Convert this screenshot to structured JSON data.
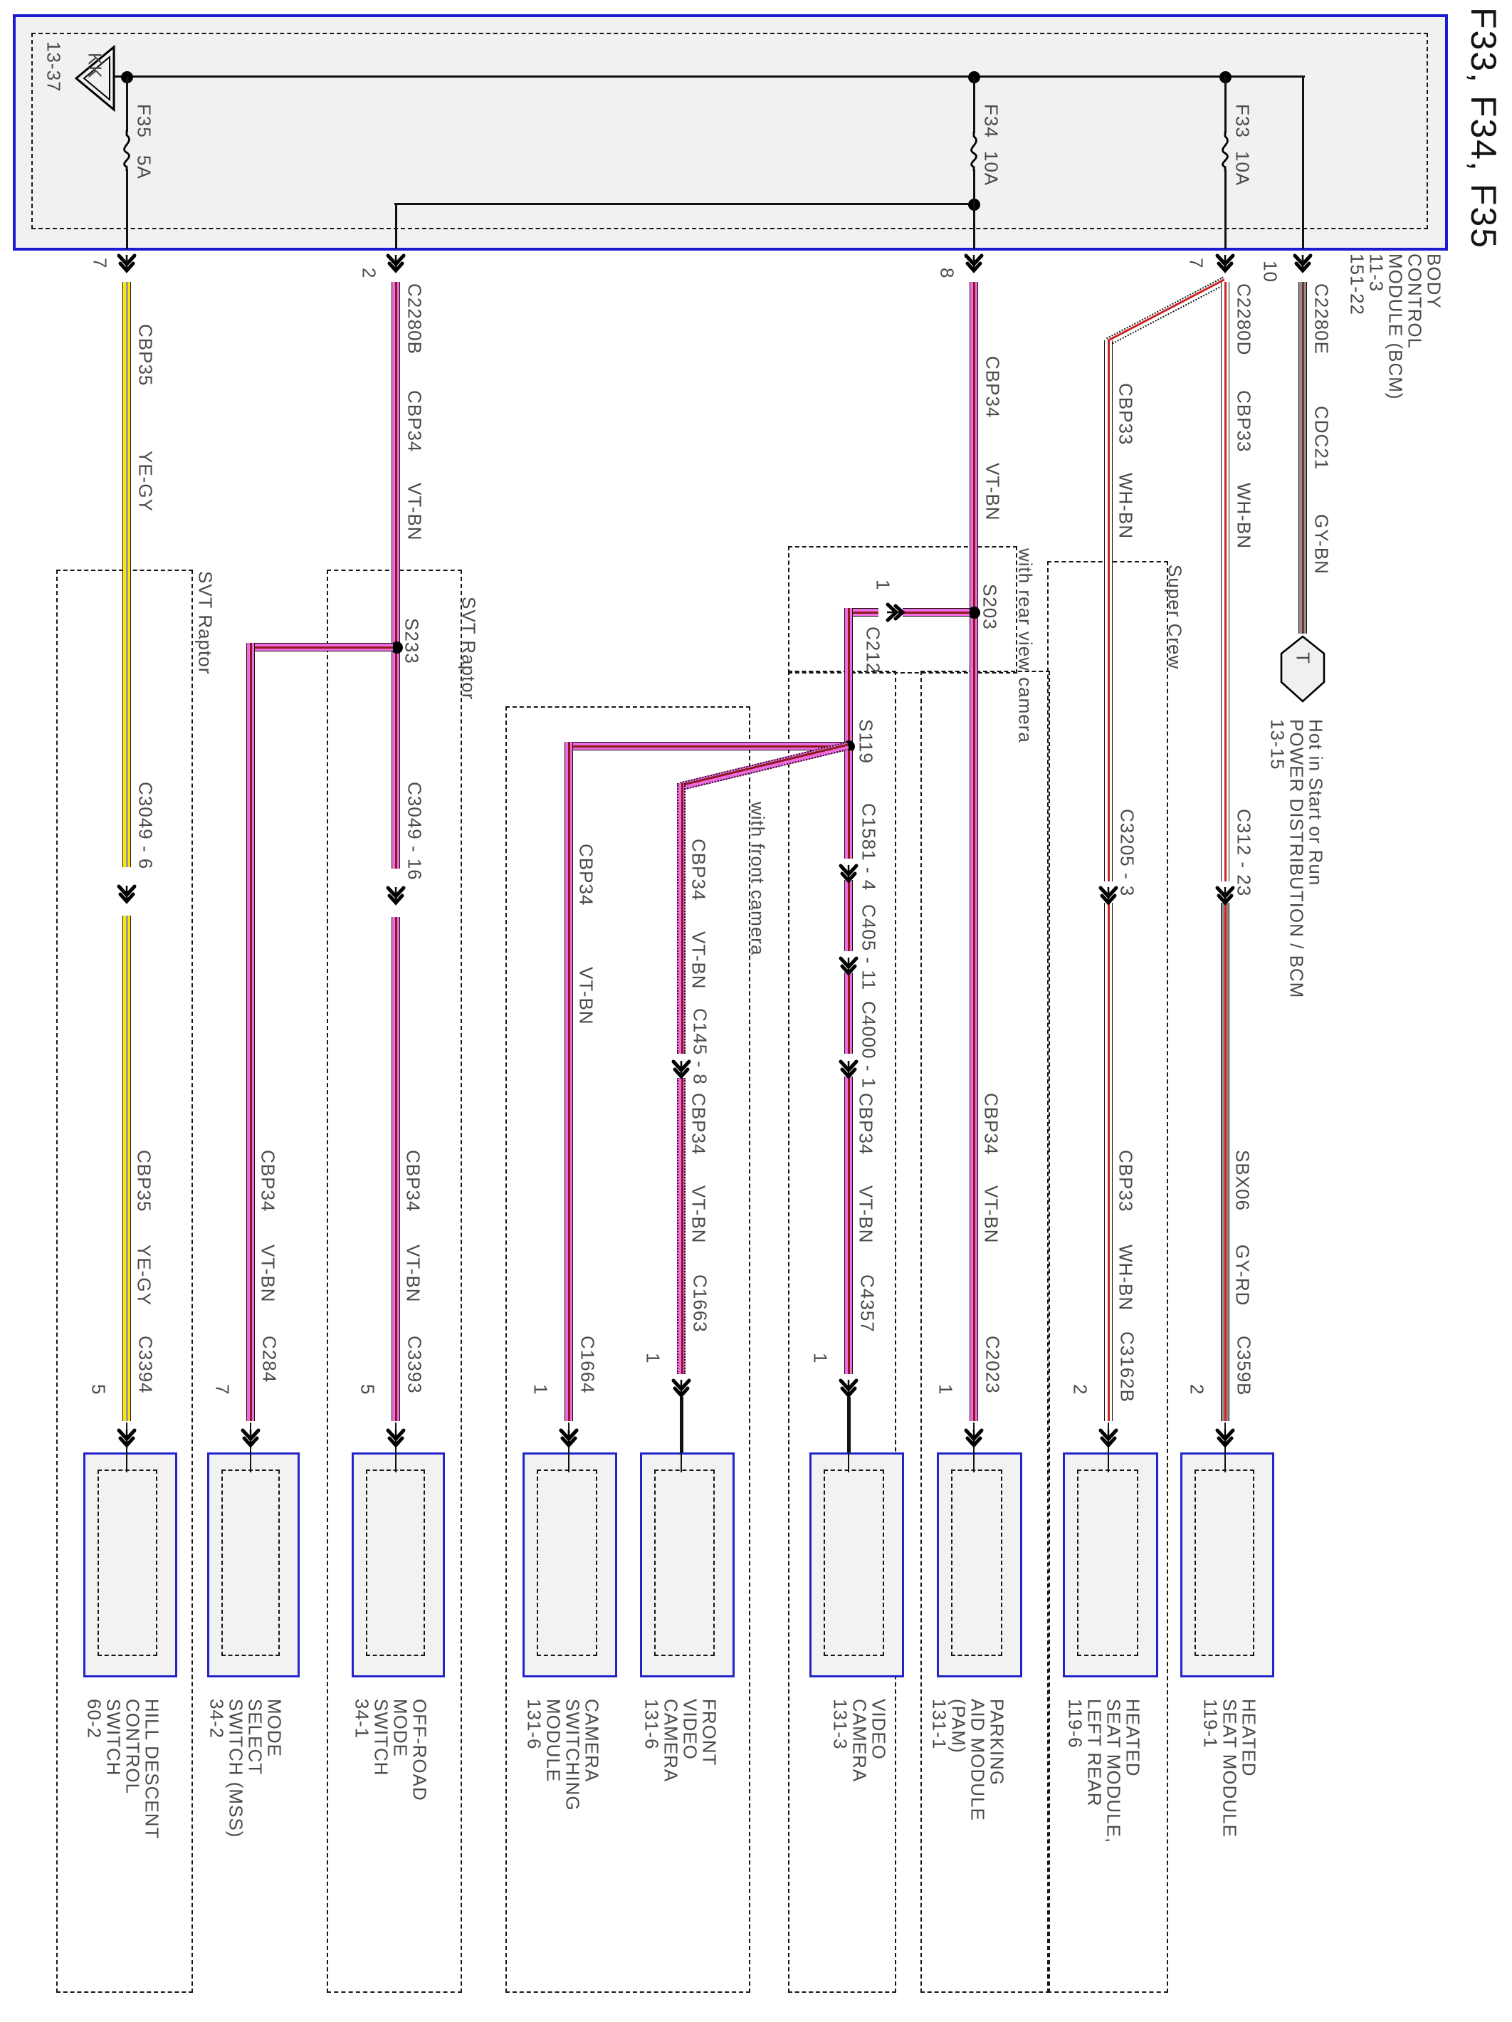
{
  "title": "F33, F34, F35",
  "bcm_label": "BODY\nCONTROL\nMODULE (BCM)\n11-3\n151-22",
  "power_box": {
    "kk_code": "KK",
    "kk_ref": "13-37",
    "fuses": [
      {
        "name": "F35",
        "rating": "5A"
      },
      {
        "name": "F34",
        "rating": "10A"
      },
      {
        "name": "F33",
        "rating": "10A"
      }
    ]
  },
  "hot_tag": {
    "symbol": "T",
    "label": "Hot in Start or Run\nPOWER DISTRIBUTION / BCM\n13-15"
  },
  "splices": {
    "s233": "S233",
    "s203": "S203",
    "s119": "S119"
  },
  "options": {
    "svt1": "SVT Raptor",
    "svt2": "SVT Raptor",
    "front_cam": "with front camera",
    "rear_cam": "with rear view camera",
    "super_crew": "Super Crew"
  },
  "c212": {
    "name": "C212",
    "pin": "1"
  },
  "columns": [
    {
      "top_pin": "7",
      "top_labels": [
        "CBP35",
        "YE-GY"
      ],
      "mid_conn": "C3049 - 6",
      "low_labels": [
        "CBP35",
        "YE-GY"
      ],
      "conn": "C3394",
      "pin": "5",
      "module": "HILL DESCENT\nCONTROL\nSWITCH\n60-2"
    },
    {
      "low_labels": [
        "CBP34",
        "VT-BN"
      ],
      "conn": "C284",
      "pin": "7",
      "module": "MODE\nSELECT\nSWITCH (MSS)\n34-2"
    },
    {
      "top_pin": "2",
      "top_labels": [
        "C2280B",
        "CBP34",
        "VT-BN"
      ],
      "mid_conn": "C3049 - 16",
      "low_labels": [
        "CBP34",
        "VT-BN"
      ],
      "conn": "C3393",
      "pin": "5",
      "module": "OFF-ROAD\nMODE\nSWITCH\n34-1"
    },
    {
      "mid_labels": [
        "CBP34",
        "VT-BN"
      ],
      "conn": "C1664",
      "pin": "1",
      "module": "CAMERA\nSWITCHING\nMODULE\n131-6"
    },
    {
      "mid_labels": [
        "CBP34",
        "VT-BN"
      ],
      "mid_conn": "C145 - 8",
      "low_labels": [
        "CBP34",
        "VT-BN"
      ],
      "conn": "C1663",
      "pin": "1",
      "module": "FRONT\nVIDEO\nCAMERA\n131-6"
    },
    {
      "conns": [
        "C1581 - 4",
        "C405 - 11",
        "C4000 - 1"
      ],
      "low_labels": [
        "CBP34",
        "VT-BN"
      ],
      "conn": "C4357",
      "pin": "1",
      "module": "VIDEO\nCAMERA\n131-3"
    },
    {
      "top_pin": "8",
      "top_labels": [
        "CBP34",
        "VT-BN"
      ],
      "low_labels": [
        "CBP34",
        "VT-BN"
      ],
      "conn": "C2023",
      "pin": "1",
      "module": "PARKING\nAID MODULE\n(PAM)\n131-1"
    },
    {
      "mid_labels": [
        "CBP33",
        "WH-BN"
      ],
      "mid_conn": "C3205 - 3",
      "low_labels": [
        "CBP33",
        "WH-BN"
      ],
      "conn": "C3162B",
      "pin": "2",
      "module": "HEATED\nSEAT MODULE,\nLEFT REAR\n119-6"
    },
    {
      "top_pin": "7",
      "top_labels": [
        "C2280D",
        "CBP33",
        "WH-BN"
      ],
      "mid_conn": "C312 - 23",
      "low_labels": [
        "SBX06",
        "GY-RD"
      ],
      "conn": "C359B",
      "pin": "2",
      "module": "HEATED\nSEAT MODULE\n119-1"
    },
    {
      "top_pin": "10",
      "top_labels": [
        "C2280E",
        "CDC21",
        "GY-BN"
      ]
    }
  ],
  "colors": {
    "blue": "#1b1bd1",
    "yellow": "#ffe600",
    "yellow_stripe": "#9a9a9a",
    "violet": "#f06ae0",
    "violet_stripe": "#8b1a1a",
    "white": "#ffffff",
    "white_stripe": "#cc2222",
    "gray": "#8f8f8f",
    "gy_bn_stripe": "#7a3426",
    "gy_rd_stripe": "#dd2222",
    "text": "#4a4a4a"
  }
}
